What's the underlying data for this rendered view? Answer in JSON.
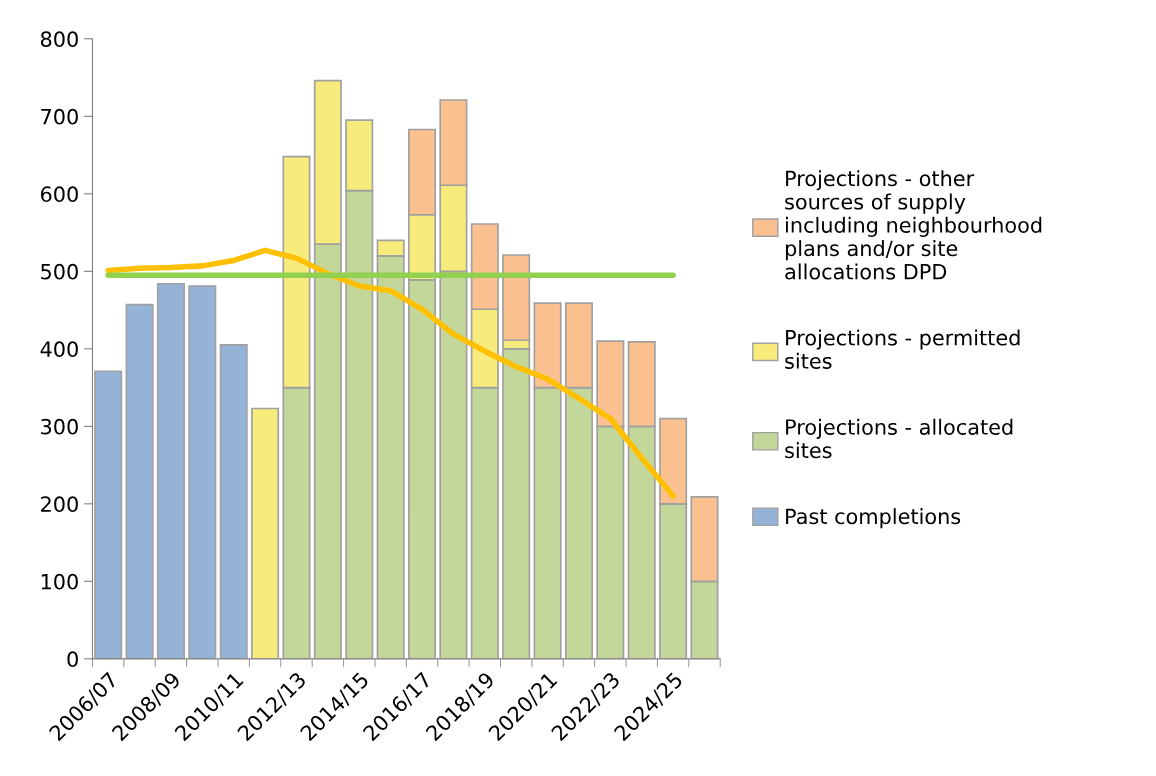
{
  "chart_data": {
    "type": "bar",
    "stacked": true,
    "categories": [
      "2006/07",
      null,
      "2008/09",
      null,
      "2010/11",
      null,
      "2012/13",
      null,
      "2014/15",
      null,
      "2016/17",
      null,
      "2018/19",
      null,
      "2020/21",
      null,
      "2022/23",
      null,
      "2024/25",
      null
    ],
    "series": [
      {
        "name": "Past completions",
        "color": "#95b3d7",
        "values": [
          371,
          457,
          484,
          481,
          405,
          null,
          null,
          null,
          null,
          null,
          null,
          null,
          null,
          null,
          null,
          null,
          null,
          null,
          null,
          null
        ]
      },
      {
        "name": "Projections - allocated sites",
        "color": "#c4d79b",
        "values": [
          null,
          null,
          null,
          null,
          null,
          null,
          350,
          535,
          604,
          520,
          489,
          500,
          350,
          400,
          350,
          350,
          300,
          300,
          200,
          100
        ]
      },
      {
        "name": "Projections - permitted sites",
        "color": "#f7ec7b",
        "values": [
          null,
          null,
          null,
          null,
          null,
          323,
          298,
          211,
          91,
          20,
          84,
          111,
          101,
          11,
          null,
          null,
          null,
          null,
          null,
          null
        ]
      },
      {
        "name": "Projections - other sources of supply including neighbourhood plans and/or site allocations DPD",
        "color": "#fac090",
        "values": [
          null,
          null,
          null,
          null,
          null,
          null,
          null,
          null,
          null,
          null,
          110,
          110,
          110,
          110,
          109,
          109,
          110,
          109,
          110,
          109
        ]
      },
      {
        "type": "line",
        "color": "#ffc000",
        "values": [
          501,
          504,
          505,
          507,
          514,
          527,
          517,
          497,
          481,
          475,
          451,
          419,
          397,
          377,
          361,
          336,
          310,
          259,
          210,
          null
        ]
      },
      {
        "type": "line",
        "color": "#92d050",
        "values": [
          495,
          495,
          495,
          495,
          495,
          495,
          495,
          495,
          495,
          495,
          495,
          495,
          495,
          495,
          495,
          495,
          495,
          495,
          495,
          null
        ]
      }
    ],
    "ylim": [
      0,
      800
    ],
    "yticks": [
      0,
      100,
      200,
      300,
      400,
      500,
      600,
      700,
      800
    ],
    "legend": "right",
    "grid": false
  }
}
